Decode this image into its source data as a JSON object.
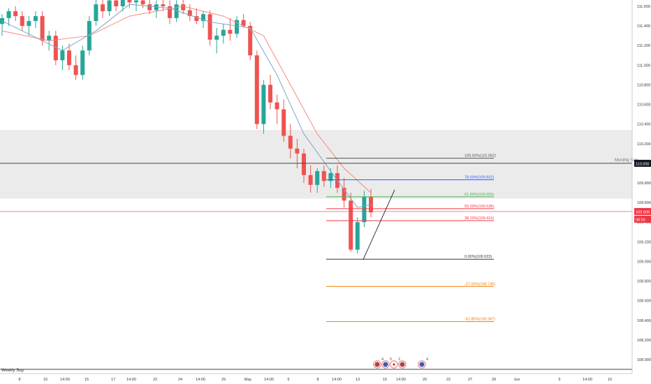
{
  "chart_data": {
    "type": "candlestick",
    "y_axis": {
      "range": [
        108.0,
        111.65
      ],
      "ticks": [
        "111.800",
        "111.600",
        "111.400",
        "111.200",
        "111.000",
        "110.800",
        "110.600",
        "110.400",
        "110.200",
        "110.000",
        "109.800",
        "109.600",
        "109.400",
        "109.200",
        "109.000",
        "108.800",
        "108.600",
        "108.400",
        "108.200",
        "108.000"
      ]
    },
    "x_axis": {
      "ticks": [
        "8",
        "10",
        "14:00",
        "15",
        "17",
        "14:00",
        "22",
        "24",
        "14:00",
        "29",
        "May",
        "14:00",
        "6",
        "8",
        "14:00",
        "13",
        "15",
        "14:00",
        "20",
        "22",
        "27",
        "29",
        "Jun",
        "5",
        "14:00",
        "10"
      ]
    },
    "current_price": "109.509",
    "countdown": "08:56",
    "zones": [
      {
        "label": "",
        "from": 109.64,
        "to": 110.34,
        "color": "#ebebeb"
      }
    ],
    "horizontal_lines": [
      {
        "label": "Monthly Sup",
        "price_tag": "110.000",
        "value": 110.0,
        "color": "#444444"
      },
      {
        "label": "Weekly Sup",
        "value": 107.9,
        "color": "#444444"
      }
    ],
    "fibonacci": [
      {
        "label": "100.00%(110.052)",
        "value": 110.052,
        "color": "#555555"
      },
      {
        "label": "78.60%(109.832)",
        "value": 109.832,
        "color": "#2962ff"
      },
      {
        "label": "61.80%(109.659)",
        "value": 109.659,
        "color": "#4caf50"
      },
      {
        "label": "50.00%(109.538)",
        "value": 109.538,
        "color": "#f23645"
      },
      {
        "label": "38.20%(109.416)",
        "value": 109.416,
        "color": "#f23645"
      },
      {
        "label": "0.00%(109.023)",
        "value": 109.023,
        "color": "#333333"
      },
      {
        "label": "-27.00%(108.745)",
        "value": 108.745,
        "color": "#f57c00"
      },
      {
        "label": "-61.80%(108.387)",
        "value": 108.387,
        "color": "#f57c00"
      }
    ],
    "trend_line": {
      "from": [
        520,
        109.02
      ],
      "to": [
        565,
        109.73
      ]
    },
    "candles": [
      [
        1,
        111.42,
        111.52,
        111.3,
        111.48
      ],
      [
        2,
        111.48,
        111.58,
        111.4,
        111.55
      ],
      [
        3,
        111.55,
        111.6,
        111.45,
        111.5
      ],
      [
        4,
        111.5,
        111.55,
        111.35,
        111.4
      ],
      [
        5,
        111.4,
        111.5,
        111.3,
        111.45
      ],
      [
        6,
        111.45,
        111.55,
        111.38,
        111.5
      ],
      [
        7,
        111.5,
        111.55,
        111.2,
        111.25
      ],
      [
        8,
        111.25,
        111.35,
        111.15,
        111.3
      ],
      [
        9,
        111.3,
        111.35,
        111.0,
        111.05
      ],
      [
        10,
        111.05,
        111.2,
        110.95,
        111.15
      ],
      [
        11,
        111.15,
        111.22,
        110.95,
        111.0
      ],
      [
        12,
        111.0,
        111.1,
        110.85,
        110.9
      ],
      [
        13,
        110.9,
        111.2,
        110.85,
        111.15
      ],
      [
        14,
        111.15,
        111.5,
        111.1,
        111.45
      ],
      [
        15,
        111.45,
        111.68,
        111.4,
        111.62
      ],
      [
        16,
        111.62,
        111.7,
        111.48,
        111.55
      ],
      [
        17,
        111.55,
        111.72,
        111.5,
        111.66
      ],
      [
        18,
        111.66,
        111.7,
        111.55,
        111.6
      ],
      [
        19,
        111.6,
        111.75,
        111.55,
        111.68
      ],
      [
        20,
        111.68,
        111.72,
        111.58,
        111.64
      ],
      [
        21,
        111.64,
        111.7,
        111.55,
        111.66
      ],
      [
        22,
        111.66,
        111.7,
        111.58,
        111.62
      ],
      [
        23,
        111.62,
        111.7,
        111.52,
        111.56
      ],
      [
        24,
        111.56,
        111.66,
        111.48,
        111.62
      ],
      [
        25,
        111.62,
        111.72,
        111.55,
        111.6
      ],
      [
        26,
        111.6,
        111.66,
        111.42,
        111.48
      ],
      [
        27,
        111.48,
        111.66,
        111.44,
        111.62
      ],
      [
        28,
        111.62,
        111.7,
        111.52,
        111.56
      ],
      [
        29,
        111.56,
        111.62,
        111.45,
        111.5
      ],
      [
        30,
        111.5,
        111.58,
        111.42,
        111.45
      ],
      [
        31,
        111.45,
        111.55,
        111.38,
        111.52
      ],
      [
        32,
        111.52,
        111.56,
        111.2,
        111.26
      ],
      [
        33,
        111.26,
        111.38,
        111.12,
        111.3
      ],
      [
        34,
        111.3,
        111.42,
        111.22,
        111.36
      ],
      [
        35,
        111.36,
        111.48,
        111.25,
        111.32
      ],
      [
        36,
        111.32,
        111.5,
        111.28,
        111.46
      ],
      [
        37,
        111.46,
        111.52,
        111.38,
        111.4
      ],
      [
        38,
        111.4,
        111.44,
        111.05,
        111.1
      ],
      [
        39,
        111.1,
        111.15,
        110.35,
        110.4
      ],
      [
        40,
        110.4,
        110.85,
        110.3,
        110.8
      ],
      [
        41,
        110.8,
        110.9,
        110.55,
        110.62
      ],
      [
        42,
        110.62,
        110.7,
        110.4,
        110.55
      ],
      [
        43,
        110.55,
        110.65,
        110.22,
        110.28
      ],
      [
        44,
        110.28,
        110.4,
        110.05,
        110.15
      ],
      [
        45,
        110.15,
        110.25,
        109.95,
        110.1
      ],
      [
        46,
        110.1,
        110.15,
        109.8,
        109.88
      ],
      [
        47,
        109.88,
        109.98,
        109.7,
        109.78
      ],
      [
        48,
        109.78,
        109.95,
        109.7,
        109.92
      ],
      [
        49,
        109.92,
        109.98,
        109.76,
        109.82
      ],
      [
        50,
        109.82,
        109.95,
        109.75,
        109.9
      ],
      [
        51,
        109.9,
        109.98,
        109.7,
        109.75
      ],
      [
        52,
        109.75,
        109.85,
        109.55,
        109.62
      ],
      [
        53,
        109.62,
        109.7,
        109.1,
        109.12
      ],
      [
        54,
        109.12,
        109.45,
        109.08,
        109.4
      ],
      [
        55,
        109.4,
        109.72,
        109.35,
        109.66
      ],
      [
        56,
        109.66,
        109.74,
        109.45,
        109.5
      ]
    ],
    "sma_fast": [
      [
        1,
        111.45
      ],
      [
        10,
        111.15
      ],
      [
        15,
        111.35
      ],
      [
        20,
        111.62
      ],
      [
        26,
        111.58
      ],
      [
        32,
        111.44
      ],
      [
        38,
        111.38
      ],
      [
        42,
        110.9
      ],
      [
        46,
        110.3
      ],
      [
        50,
        109.92
      ],
      [
        54,
        109.55
      ],
      [
        56,
        109.58
      ]
    ],
    "sma_slow": [
      [
        1,
        111.35
      ],
      [
        8,
        111.25
      ],
      [
        14,
        111.3
      ],
      [
        20,
        111.5
      ],
      [
        28,
        111.6
      ],
      [
        34,
        111.5
      ],
      [
        40,
        111.3
      ],
      [
        44,
        110.8
      ],
      [
        48,
        110.3
      ],
      [
        52,
        109.95
      ],
      [
        56,
        109.7
      ]
    ],
    "event_icons": [
      "US",
      "EU",
      "JP",
      "US",
      "EU"
    ],
    "event_counts": [
      "4",
      "5",
      "2",
      "4"
    ]
  }
}
